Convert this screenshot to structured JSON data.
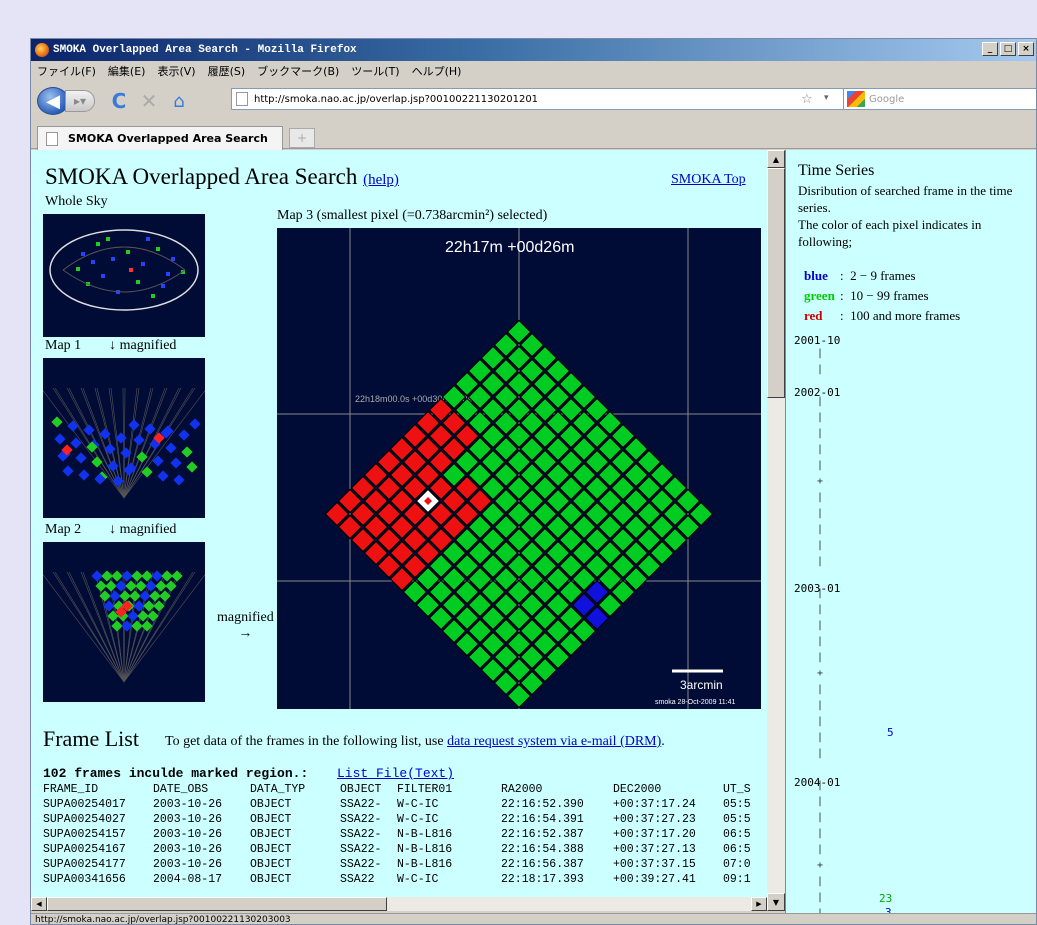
{
  "window": {
    "title": "SMOKA Overlapped Area Search - Mozilla Firefox"
  },
  "menu": [
    "ファイル(F)",
    "編集(E)",
    "表示(V)",
    "履歴(S)",
    "ブックマーク(B)",
    "ツール(T)",
    "ヘルプ(H)"
  ],
  "nav": {
    "url": "http://smoka.nao.ac.jp/overlap.jsp?00100221130201201",
    "search_placeholder": "Google"
  },
  "tab": {
    "title": "SMOKA Overlapped Area Search"
  },
  "status": "http://smoka.nao.ac.jp/overlap.jsp?00100221130203003",
  "page": {
    "title": "SMOKA Overlapped Area Search",
    "help": "(help)",
    "smoka_top": "SMOKA Top",
    "whole_sky": "Whole Sky",
    "map1": "Map 1",
    "map2": "Map 2",
    "magnified_down": "↓ magnified",
    "map3_label": "Map 3 (smallest pixel (=0.738arcmin²) selected)",
    "map3_coord": "22h17m  +00d26m",
    "map3_grid_label": "22h18m00.0s +00d30m00.0s",
    "scale": "3arcmin",
    "credit": "smoka 28-Oct-2009 11:41",
    "magnified": "magnified",
    "arrow": "→"
  },
  "framelist": {
    "title": "Frame List",
    "desc": "To get data of the frames in the following list, use",
    "link": "data request system via e-mail (DRM)",
    "period": ".",
    "count": "102 frames inculde marked region.:",
    "listfile": "List File(Text)",
    "headers": [
      "FRAME_ID",
      "DATE_OBS",
      "DATA_TYP",
      "OBJECT",
      "FILTER01",
      "RA2000",
      "DEC2000",
      "UT_S"
    ],
    "rows": [
      [
        "SUPA00254017",
        "2003-10-26",
        "OBJECT",
        "SSA22-",
        "W-C-IC",
        "22:16:52.390",
        "+00:37:17.24",
        "05:5"
      ],
      [
        "SUPA00254027",
        "2003-10-26",
        "OBJECT",
        "SSA22-",
        "W-C-IC",
        "22:16:54.391",
        "+00:37:27.23",
        "05:5"
      ],
      [
        "SUPA00254157",
        "2003-10-26",
        "OBJECT",
        "SSA22-",
        "N-B-L816",
        "22:16:52.387",
        "+00:37:17.20",
        "06:5"
      ],
      [
        "SUPA00254167",
        "2003-10-26",
        "OBJECT",
        "SSA22-",
        "N-B-L816",
        "22:16:54.388",
        "+00:37:27.13",
        "06:5"
      ],
      [
        "SUPA00254177",
        "2003-10-26",
        "OBJECT",
        "SSA22-",
        "N-B-L816",
        "22:16:56.387",
        "+00:37:37.15",
        "07:0"
      ],
      [
        "SUPA00341656",
        "2004-08-17",
        "OBJECT",
        "SSA22",
        "W-C-IC",
        "22:18:17.393",
        "+00:39:27.41",
        "09:1"
      ]
    ]
  },
  "timeseries": {
    "title": "Time Series",
    "desc": "Disribution of searched frame in the time series.\nThe color of each pixel indicates in following;",
    "legend": [
      {
        "name": "blue",
        "sep": ":",
        "text": "2 − 9 frames",
        "color": "#0000cc"
      },
      {
        "name": "green",
        "sep": ":",
        "text": "10 − 99 frames",
        "color": "#00cc00"
      },
      {
        "name": "red",
        "sep": ":",
        "text": "100 and more frames",
        "color": "#cc0000"
      }
    ],
    "dates": [
      "2001-10",
      "2002-01",
      "2003-01",
      "2004-01"
    ],
    "counts": [
      {
        "value": "5",
        "color": "#0000cc"
      },
      {
        "value": "23",
        "color": "#00aa00"
      },
      {
        "value": "3",
        "color": "#0000cc"
      }
    ]
  },
  "colors": {
    "bg": "#ccffff",
    "green": "#00cc22",
    "red": "#ee1111",
    "blue": "#1111dd",
    "mapbg": "#000b36"
  }
}
